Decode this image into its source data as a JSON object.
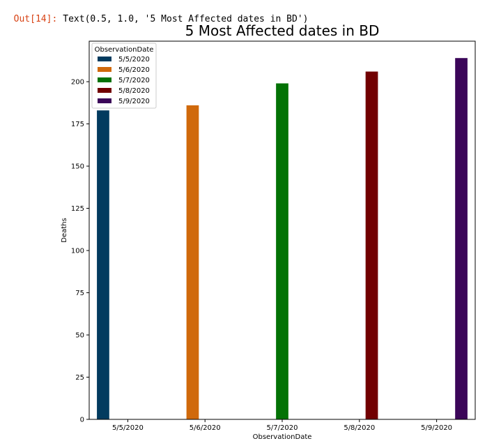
{
  "output": {
    "prompt": "Out[14]:",
    "text": "Text(0.5, 1.0, '5 Most Affected dates in BD')"
  },
  "chart_data": {
    "type": "bar",
    "title": "5 Most Affected dates in BD",
    "xlabel": "ObservationDate",
    "ylabel": "Deaths",
    "categories": [
      "5/5/2020",
      "5/6/2020",
      "5/7/2020",
      "5/8/2020",
      "5/9/2020"
    ],
    "series": [
      {
        "name": "5/5/2020",
        "color": "#023b5f",
        "values": [
          183,
          null,
          null,
          null,
          null
        ]
      },
      {
        "name": "5/6/2020",
        "color": "#d0690b",
        "values": [
          null,
          186,
          null,
          null,
          null
        ]
      },
      {
        "name": "5/7/2020",
        "color": "#037205",
        "values": [
          null,
          null,
          199,
          null,
          null
        ]
      },
      {
        "name": "5/8/2020",
        "color": "#720001",
        "values": [
          null,
          null,
          null,
          206,
          null
        ]
      },
      {
        "name": "5/9/2020",
        "color": "#3b0659",
        "values": [
          null,
          null,
          null,
          null,
          214
        ]
      }
    ],
    "ylim": [
      0,
      224
    ],
    "yticks": [
      0,
      25,
      50,
      75,
      100,
      125,
      150,
      175,
      200
    ],
    "grid": false,
    "legend": {
      "title": "ObservationDate",
      "position": "top-left"
    }
  }
}
